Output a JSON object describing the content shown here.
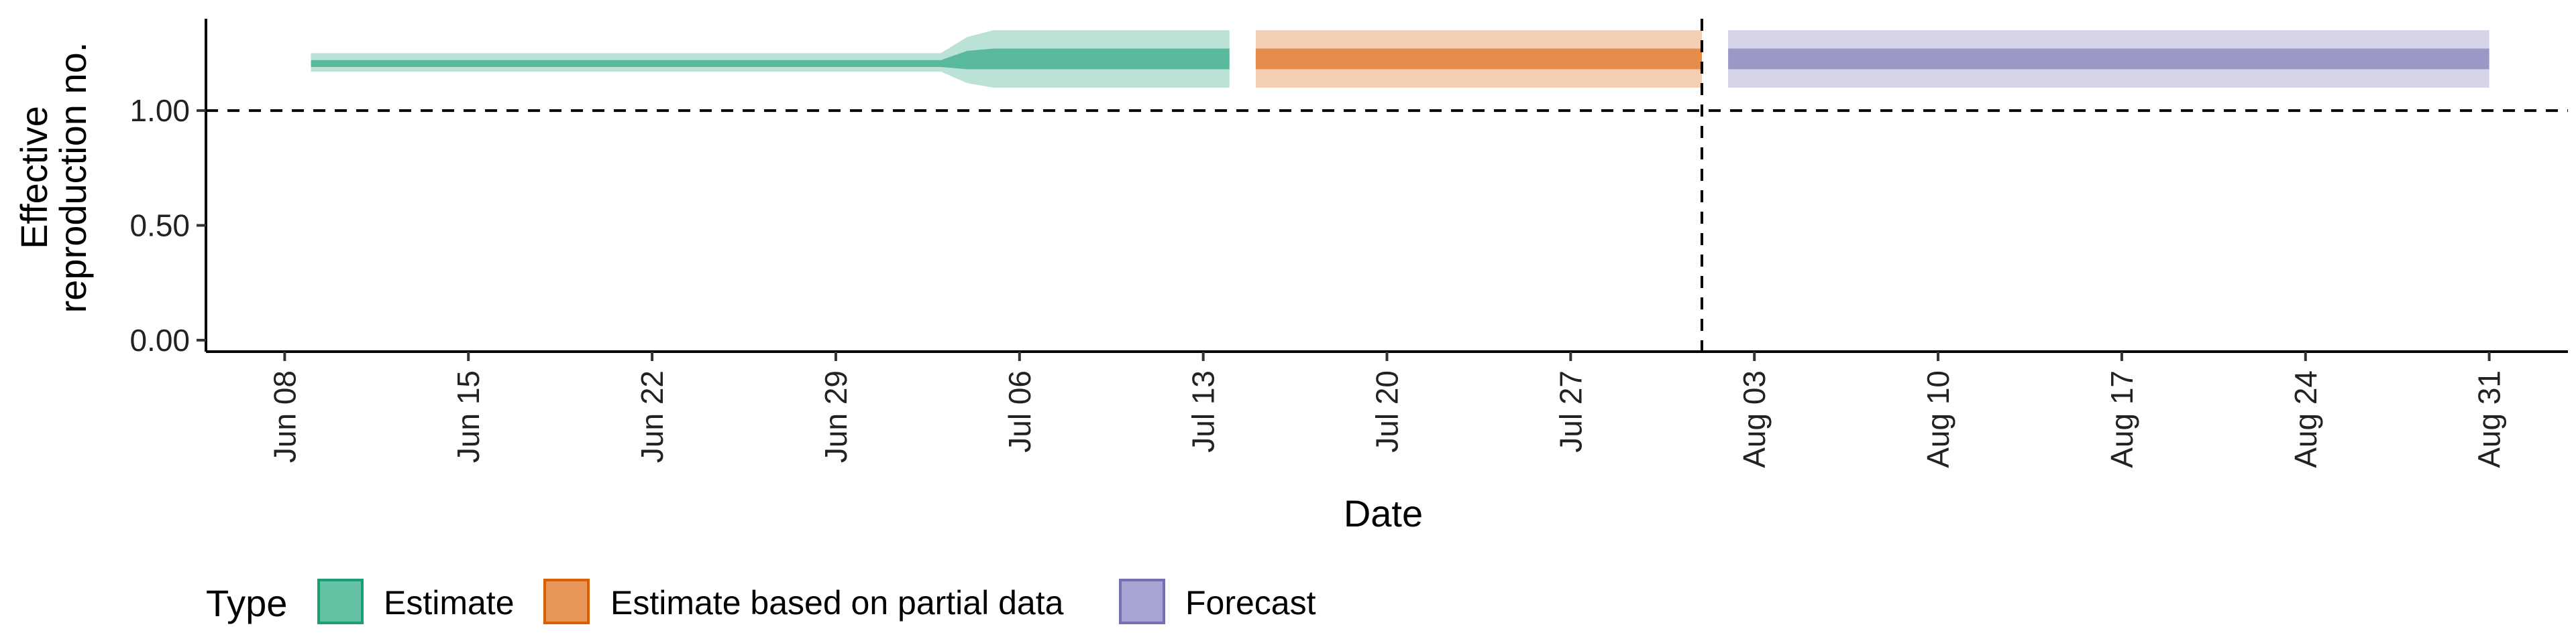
{
  "chart_data": {
    "type": "area",
    "xlabel": "Date",
    "ylabel_lines": [
      "Effective",
      "reproduction no."
    ],
    "x_range": [
      "2020-06-05",
      "2020-09-03"
    ],
    "ylim": [
      -0.05,
      1.4
    ],
    "y_ticks": [
      0.0,
      0.5,
      1.0
    ],
    "y_tick_labels": [
      "0.00",
      "0.50",
      "1.00"
    ],
    "x_ticks": [
      "2020-06-08",
      "2020-06-15",
      "2020-06-22",
      "2020-06-29",
      "2020-07-06",
      "2020-07-13",
      "2020-07-20",
      "2020-07-27",
      "2020-08-03",
      "2020-08-10",
      "2020-08-17",
      "2020-08-24",
      "2020-08-31"
    ],
    "x_tick_labels": [
      "Jun 08",
      "Jun 15",
      "Jun 22",
      "Jun 29",
      "Jul 06",
      "Jul 13",
      "Jul 20",
      "Jul 27",
      "Aug 03",
      "Aug 10",
      "Aug 17",
      "Aug 24",
      "Aug 31"
    ],
    "hline": 1.0,
    "vline": "2020-08-01",
    "grid": false,
    "legend_placement": "bottom-left",
    "legend_title": "Type",
    "series": [
      {
        "name": "Estimate",
        "color": "#1B9E77",
        "points": [
          {
            "x": "2020-06-09",
            "lo90": 1.17,
            "lo50": 1.19,
            "hi50": 1.22,
            "hi90": 1.25
          },
          {
            "x": "2020-07-03",
            "lo90": 1.17,
            "lo50": 1.19,
            "hi50": 1.22,
            "hi90": 1.25
          },
          {
            "x": "2020-07-04",
            "lo90": 1.12,
            "lo50": 1.18,
            "hi50": 1.26,
            "hi90": 1.32
          },
          {
            "x": "2020-07-05",
            "lo90": 1.1,
            "lo50": 1.18,
            "hi50": 1.27,
            "hi90": 1.35
          },
          {
            "x": "2020-07-14",
            "lo90": 1.1,
            "lo50": 1.18,
            "hi50": 1.27,
            "hi90": 1.35
          }
        ]
      },
      {
        "name": "Estimate based on partial data",
        "color": "#D95F02",
        "points": [
          {
            "x": "2020-07-15",
            "lo90": 1.1,
            "lo50": 1.18,
            "hi50": 1.27,
            "hi90": 1.35
          },
          {
            "x": "2020-08-01",
            "lo90": 1.1,
            "lo50": 1.18,
            "hi50": 1.27,
            "hi90": 1.35
          }
        ]
      },
      {
        "name": "Forecast",
        "color": "#7570B3",
        "points": [
          {
            "x": "2020-08-02",
            "lo90": 1.1,
            "lo50": 1.18,
            "hi50": 1.27,
            "hi90": 1.35
          },
          {
            "x": "2020-08-31",
            "lo90": 1.1,
            "lo50": 1.18,
            "hi50": 1.27,
            "hi90": 1.35
          }
        ]
      }
    ]
  },
  "legend": {
    "title": "Type",
    "items": [
      {
        "label": "Estimate",
        "color": "#1B9E77"
      },
      {
        "label": "Estimate based on partial data",
        "color": "#D95F02"
      },
      {
        "label": "Forecast",
        "color": "#7570B3"
      }
    ]
  }
}
